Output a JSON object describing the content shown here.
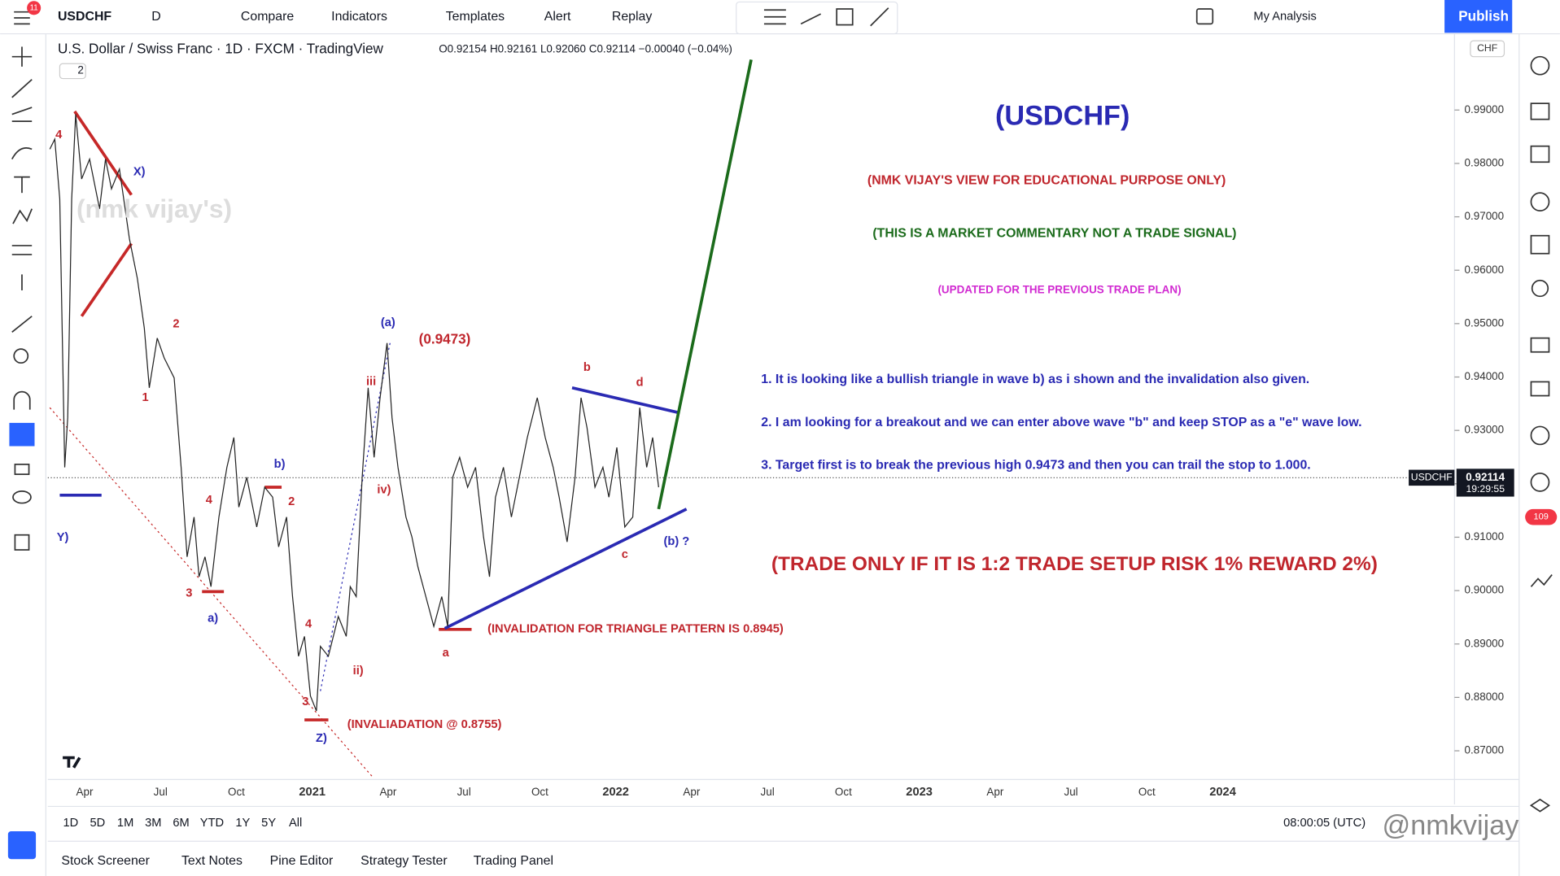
{
  "top_toolbar": {
    "notification": "11",
    "symbol": "USDCHF",
    "interval": "D",
    "items": [
      "Compare",
      "Indicators",
      "Templates",
      "Alert",
      "Replay"
    ],
    "my_analysis": "My Analysis",
    "publish": "Publish"
  },
  "legend": {
    "title": "U.S. Dollar / Swiss Franc · 1D · FXCM · TradingView",
    "ohlc": "O0.92154 H0.92161 L0.92060 C0.92114 −0.00040 (−0.04%)",
    "indicators_count": "2"
  },
  "chart": {
    "currency": "CHF",
    "ylim": [
      0.8648,
      1.0039
    ],
    "yticks": [
      {
        "value": 0.87,
        "label": "0.87000"
      },
      {
        "value": 0.88,
        "label": "0.88000"
      },
      {
        "value": 0.89,
        "label": "0.89000"
      },
      {
        "value": 0.9,
        "label": "0.90000"
      },
      {
        "value": 0.91,
        "label": "0.91000"
      },
      {
        "value": 0.92,
        "label": "0.92000"
      },
      {
        "value": 0.93,
        "label": "0.93000"
      },
      {
        "value": 0.94,
        "label": "0.94000"
      },
      {
        "value": 0.95,
        "label": "0.95000"
      },
      {
        "value": 0.96,
        "label": "0.96000"
      },
      {
        "value": 0.97,
        "label": "0.97000"
      },
      {
        "value": 0.98,
        "label": "0.98000"
      },
      {
        "value": 0.99,
        "label": "0.99000"
      }
    ],
    "xticks": [
      "Apr",
      "Jul",
      "Oct",
      "2021",
      "Apr",
      "Jul",
      "Oct",
      "2022",
      "Apr",
      "Jul",
      "Oct",
      "2023",
      "Apr",
      "Jul",
      "Oct",
      "2024"
    ],
    "symbol_tag": "USDCHF",
    "last_price": 0.92114,
    "countdown": "19:29:55"
  },
  "wave_labels": [
    "4",
    "X)",
    "Y)",
    "2",
    "1",
    "b)",
    "2",
    "4",
    "3",
    "a)",
    "4",
    "3",
    "Z)",
    "ii)",
    "iv)",
    "iii",
    "(a)",
    "(0.9473)",
    "b",
    "d",
    "a",
    "c",
    "(b) ?"
  ],
  "annotations": {
    "watermark": "(nmk vijay's)",
    "invalidation_triangle": "(INVALIDATION FOR TRIANGLE PATTERN IS 0.8945)",
    "invalidation_low": "(INVALIADATION @ 0.8755)",
    "heading": "(USDCHF)",
    "disclaimer": "(NMK VIJAY'S VIEW FOR EDUCATIONAL PURPOSE ONLY)",
    "commentary": "(THIS IS A MARKET COMMENTARY NOT A TRADE SIGNAL)",
    "updated": "(UPDATED FOR THE PREVIOUS TRADE PLAN)",
    "points": [
      "1. It is looking like a bullish triangle in wave b) as i shown and the invalidation also given.",
      "2. I am looking for a breakout and we can enter above wave \"b\" and keep STOP as a \"e\" wave low.",
      "3. Target first is to break the previous high 0.9473 and then you can trail the stop to 1.000."
    ],
    "risk": "(TRADE ONLY IF IT IS 1:2 TRADE SETUP RISK 1% REWARD 2%)"
  },
  "bottom_bar": {
    "ranges": [
      "1D",
      "5D",
      "1M",
      "3M",
      "6M",
      "YTD",
      "1Y",
      "5Y",
      "All"
    ],
    "clock": "08:00:05 (UTC)"
  },
  "tabs": [
    "Stock Screener",
    "Text Notes",
    "Pine Editor",
    "Strategy Tester",
    "Trading Panel"
  ],
  "alerts_badge": "109",
  "user_watermark": "@nmkvijay"
}
